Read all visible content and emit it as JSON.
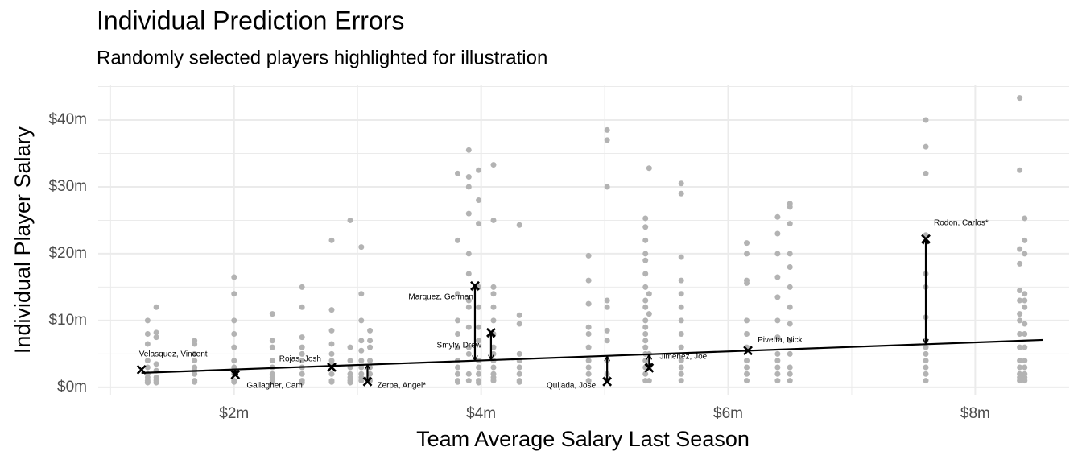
{
  "chart_data": {
    "type": "scatter",
    "title": "Individual Prediction Errors",
    "subtitle": "Randomly selected players highlighted for illustration",
    "x_label": "Team Average Salary Last Season",
    "y_label": "Individual Player Salary",
    "xlim": [
      0.9,
      8.76
    ],
    "ylim": [
      -1.1,
      45.3
    ],
    "xticks": [
      {
        "value": 2,
        "label": "$2m"
      },
      {
        "value": 4,
        "label": "$4m"
      },
      {
        "value": 6,
        "label": "$6m"
      },
      {
        "value": 8,
        "label": "$8m"
      }
    ],
    "yticks": [
      {
        "value": 0,
        "label": "$0m"
      },
      {
        "value": 10,
        "label": "$10m"
      },
      {
        "value": 20,
        "label": "$20m"
      },
      {
        "value": 30,
        "label": "$30m"
      },
      {
        "value": 40,
        "label": "$40m"
      }
    ],
    "x_minor_grid": [
      1,
      3,
      5,
      7
    ],
    "y_minor_grid": [
      5,
      15,
      25,
      35,
      45
    ],
    "grid": true,
    "point_color": "#b3b3b3",
    "highlight_color": "#000000",
    "teams": [
      {
        "x": 1.3,
        "values": [
          10,
          8,
          6.5,
          4,
          3,
          2,
          1.5,
          1,
          0.8,
          0.7
        ]
      },
      {
        "x": 1.37,
        "values": [
          12,
          8.2,
          7.5,
          3.5,
          2.5,
          1.5,
          1,
          0.7
        ]
      },
      {
        "x": 1.68,
        "values": [
          7,
          6.5,
          5,
          4,
          3,
          2.5,
          2,
          1,
          0.8
        ]
      },
      {
        "x": 2.0,
        "values": [
          16.5,
          14,
          10,
          8,
          6,
          4,
          3,
          2,
          1,
          0.8
        ]
      },
      {
        "x": 2.31,
        "values": [
          11,
          7,
          6,
          4,
          3,
          2,
          1.5,
          1,
          0.8
        ]
      },
      {
        "x": 2.55,
        "values": [
          15,
          12,
          7.5,
          6,
          5,
          4,
          3,
          2,
          1,
          0.7
        ]
      },
      {
        "x": 2.79,
        "values": [
          22,
          11.6,
          8.5,
          6.5,
          5,
          4,
          3.5,
          2,
          1,
          0.8
        ]
      },
      {
        "x": 2.94,
        "values": [
          25,
          6,
          4,
          3,
          2,
          1.5,
          1,
          0.7
        ]
      },
      {
        "x": 3.03,
        "values": [
          21,
          14,
          10,
          7,
          5.5,
          4,
          3,
          2,
          1.5,
          1
        ]
      },
      {
        "x": 3.1,
        "values": [
          8.5,
          7,
          6,
          4,
          3,
          2,
          1
        ]
      },
      {
        "x": 3.81,
        "values": [
          32,
          22,
          14,
          10,
          8,
          6,
          4,
          3,
          2,
          1,
          0.8
        ]
      },
      {
        "x": 3.9,
        "values": [
          35.5,
          31.5,
          30,
          26,
          20,
          17,
          13,
          12,
          9,
          6,
          5,
          2,
          1
        ]
      },
      {
        "x": 3.98,
        "values": [
          32.5,
          28,
          24.5,
          15,
          12,
          9,
          7,
          4,
          3,
          2,
          1,
          0.7
        ]
      },
      {
        "x": 4.1,
        "values": [
          33.3,
          25,
          15,
          14,
          12,
          10,
          8,
          6,
          5,
          4,
          3,
          2,
          1.5,
          1
        ]
      },
      {
        "x": 4.31,
        "values": [
          24.3,
          10.8,
          9.5,
          5,
          4,
          3,
          2,
          1,
          0.8
        ]
      },
      {
        "x": 4.87,
        "values": [
          19.7,
          16,
          12.5,
          9,
          8,
          6,
          4,
          3,
          2,
          1
        ]
      },
      {
        "x": 5.02,
        "values": [
          38.5,
          37,
          30,
          13,
          12,
          8.5,
          7,
          4,
          2,
          1
        ]
      },
      {
        "x": 5.33,
        "values": [
          25.3,
          24,
          22,
          20,
          19,
          17,
          15,
          13,
          12,
          10,
          9,
          8,
          7,
          6,
          5,
          4,
          3,
          2,
          1
        ]
      },
      {
        "x": 5.36,
        "values": [
          32.8,
          14,
          11,
          5,
          3,
          1
        ]
      },
      {
        "x": 5.62,
        "values": [
          30.5,
          29,
          19.5,
          16,
          14,
          12,
          10,
          8,
          6,
          4,
          3,
          2,
          1
        ]
      },
      {
        "x": 6.15,
        "values": [
          21.6,
          20,
          16,
          15.6,
          10,
          8,
          6,
          4,
          3,
          2,
          1
        ]
      },
      {
        "x": 6.4,
        "values": [
          25.5,
          23,
          20,
          16.5,
          13.5,
          10,
          7.5,
          5,
          4,
          3,
          2,
          1
        ]
      },
      {
        "x": 6.5,
        "values": [
          27.5,
          27,
          24.5,
          20,
          18,
          15,
          12,
          9.5,
          7,
          5,
          3,
          2,
          1
        ]
      },
      {
        "x": 7.6,
        "values": [
          40,
          36,
          32,
          22.8,
          17,
          15,
          10.5,
          7,
          6,
          5,
          4,
          3,
          2,
          1
        ]
      },
      {
        "x": 8.36,
        "values": [
          43.3,
          32.5,
          20.7,
          18.5,
          14.5,
          13,
          11,
          10,
          8,
          6,
          4,
          3,
          2,
          1.5,
          1
        ]
      },
      {
        "x": 8.4,
        "values": [
          25.3,
          22,
          20,
          14,
          13,
          12,
          9.5,
          8,
          6,
          4,
          3,
          2,
          1.5,
          1
        ]
      }
    ],
    "fit": {
      "x": [
        1.25,
        8.55
      ],
      "values": [
        2.17,
        7.1
      ]
    },
    "highlighted": [
      {
        "name": "Velasquez, Vincent",
        "x": 1.25,
        "actual": 2.65,
        "predicted": 2.17
      },
      {
        "name": "Gallagher, Cam",
        "x": 2.01,
        "actual": 1.9,
        "predicted": 2.68
      },
      {
        "name": "Rojas, Josh",
        "x": 2.79,
        "actual": 3.0,
        "predicted": 3.21
      },
      {
        "name": "Zerpa, Angel*",
        "x": 3.08,
        "actual": 0.85,
        "predicted": 3.41
      },
      {
        "name": "Marquez, German",
        "x": 3.95,
        "actual": 15.2,
        "predicted": 3.99
      },
      {
        "name": "Smyly, Drew",
        "x": 4.08,
        "actual": 8.2,
        "predicted": 4.08
      },
      {
        "name": "Quijada, Jose",
        "x": 5.02,
        "actual": 0.85,
        "predicted": 4.71
      },
      {
        "name": "Jimenez, Joe",
        "x": 5.36,
        "actual": 2.9,
        "predicted": 4.94
      },
      {
        "name": "Pivetta, Nick",
        "x": 6.16,
        "actual": 5.5,
        "predicted": 5.48
      },
      {
        "name": "Rodon, Carlos*",
        "x": 7.6,
        "actual": 22.2,
        "predicted": 6.46
      }
    ]
  }
}
